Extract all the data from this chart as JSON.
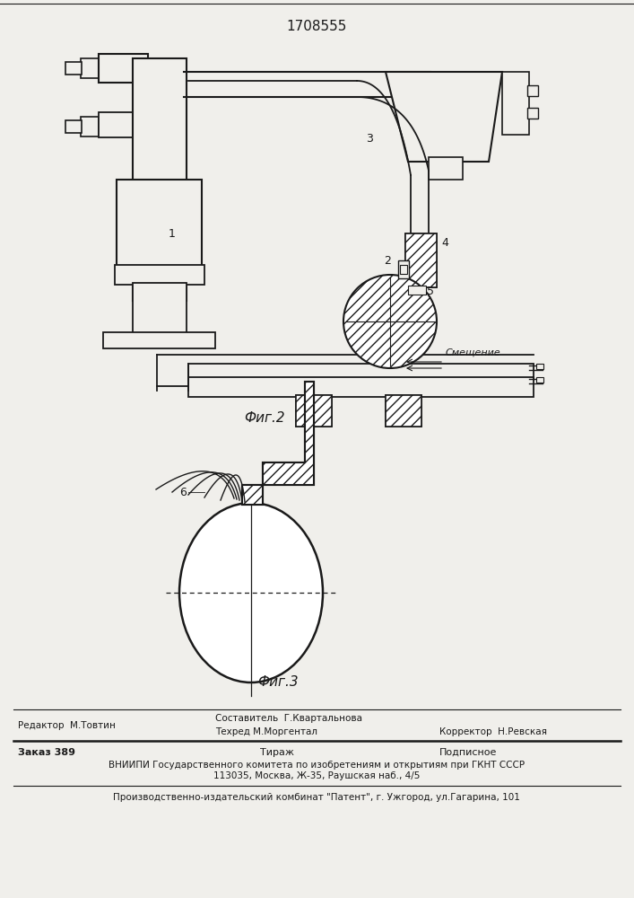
{
  "patent_number": "1708555",
  "fig2_label": "Фиг.2",
  "fig3_label": "Фиг.3",
  "label1": "1",
  "label2": "2",
  "label3": "3",
  "label4": "4",
  "label5": "5",
  "label6": "6",
  "smeshenie": "Смещение",
  "editor_line": "Редактор  М.Товтин",
  "composer_line": "Составитель  Г.Квартальнова",
  "techred_line": "Техред М.Моргентал",
  "corrector_line": "Корректор  Н.Ревская",
  "zakaz_line": "Заказ 389",
  "tirazh_line": "Тираж",
  "podpisnoe_line": "Подписное",
  "vniiipi_line": "ВНИИПИ Государственного комитета по изобретениям и открытиям при ГКНТ СССР",
  "address_line": "113035, Москва, Ж-35, Раушская наб., 4/5",
  "publisher_line": "Производственно-издательский комбинат \"Патент\", г. Ужгород, ул.Гагарина, 101",
  "bg_color": "#f0efeb",
  "line_color": "#1a1a1a"
}
